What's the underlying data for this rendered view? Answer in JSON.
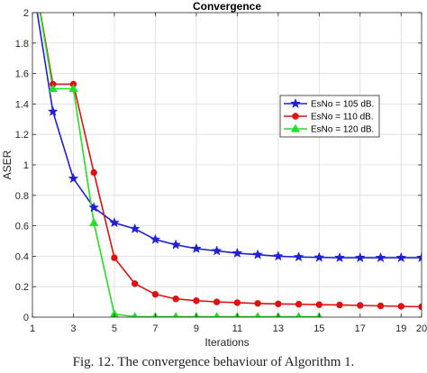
{
  "chart_data": {
    "type": "line",
    "title": "Convergence",
    "xlabel": "Iterations",
    "ylabel": "ASER",
    "xlim": [
      1,
      20
    ],
    "ylim": [
      0,
      2
    ],
    "xticks": [
      1,
      3,
      5,
      7,
      9,
      11,
      13,
      15,
      17,
      19,
      20
    ],
    "yticks": [
      0,
      0.2,
      0.4,
      0.6,
      0.8,
      1,
      1.2,
      1.4,
      1.6,
      1.8,
      2
    ],
    "grid": true,
    "legend_position": "top-right",
    "series": [
      {
        "name": "EsNo = 105 dB.",
        "color": "#1f1fd6",
        "marker": "star",
        "x": [
          1,
          2,
          3,
          4,
          5,
          6,
          7,
          8,
          9,
          10,
          11,
          12,
          13,
          14,
          15,
          16,
          17,
          18,
          19,
          20
        ],
        "y": [
          2.2,
          1.35,
          0.91,
          0.72,
          0.62,
          0.58,
          0.51,
          0.475,
          0.45,
          0.435,
          0.42,
          0.41,
          0.4,
          0.395,
          0.392,
          0.39,
          0.39,
          0.39,
          0.39,
          0.39
        ]
      },
      {
        "name": "EsNo = 110 dB.",
        "color": "#e01010",
        "marker": "circle",
        "x": [
          1,
          2,
          3,
          4,
          5,
          6,
          7,
          8,
          9,
          10,
          11,
          12,
          13,
          14,
          15,
          16,
          17,
          18,
          19,
          20
        ],
        "y": [
          2.3,
          1.53,
          1.53,
          0.95,
          0.39,
          0.22,
          0.15,
          0.12,
          0.108,
          0.1,
          0.095,
          0.09,
          0.087,
          0.085,
          0.082,
          0.08,
          0.077,
          0.074,
          0.071,
          0.068
        ]
      },
      {
        "name": "EsNo = 120 dB.",
        "color": "#22e022",
        "marker": "triangle",
        "x": [
          1,
          2,
          3,
          4,
          5,
          6,
          7,
          8,
          9,
          10,
          11,
          12,
          13,
          14,
          15
        ],
        "y": [
          2.3,
          1.5,
          1.5,
          0.62,
          0.02,
          0.003,
          0.003,
          0.003,
          0.003,
          0.003,
          0.003,
          0.003,
          0.003,
          0.003,
          0.003
        ]
      }
    ]
  },
  "caption": "Fig. 12. The convergence behaviour of Algorithm 1."
}
